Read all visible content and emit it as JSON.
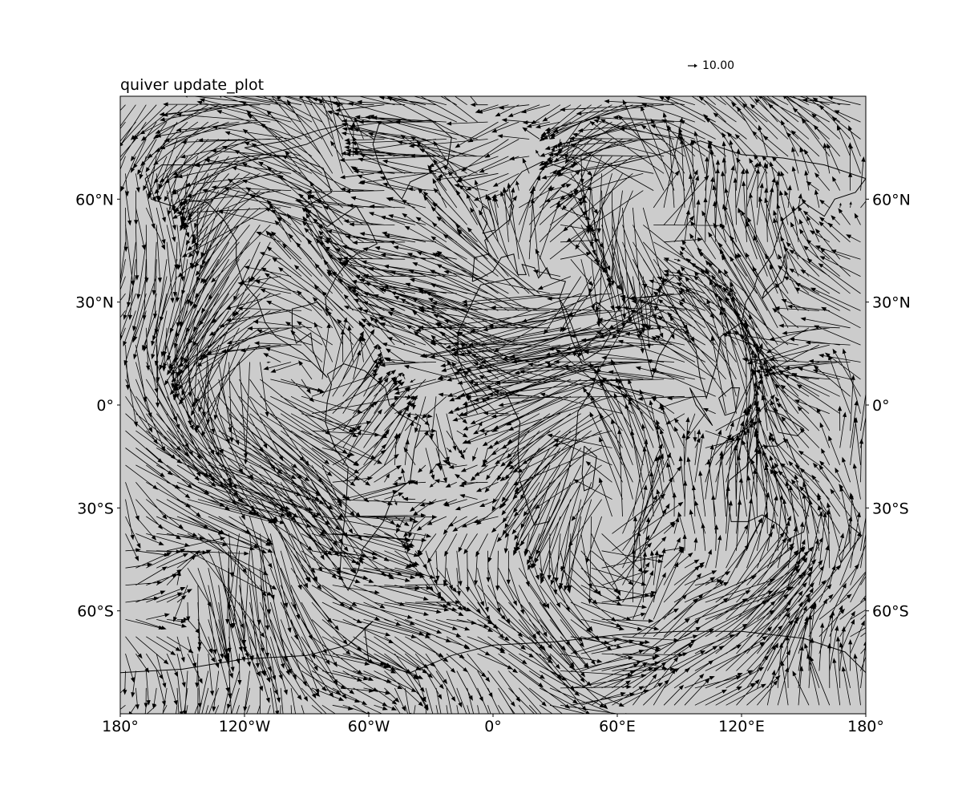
{
  "chart_data": {
    "type": "quiver",
    "title": "quiver update_plot",
    "projection": "PlateCarree",
    "xlim": [
      -180,
      180
    ],
    "ylim": [
      -90,
      90
    ],
    "x_ticks": [
      -180,
      -120,
      -60,
      0,
      60,
      120,
      180
    ],
    "x_tick_labels": [
      "180°",
      "120°W",
      "60°W",
      "0°",
      "60°E",
      "120°E",
      "180°"
    ],
    "y_ticks": [
      60,
      30,
      0,
      -30,
      -60
    ],
    "y_tick_labels": [
      "60°N",
      "30°N",
      "0°",
      "30°S",
      "60°S"
    ],
    "y_tick_labels_both_sides": true,
    "quiver_key": {
      "value": 10.0,
      "label": "10.00",
      "placement": "above plot, right of center"
    },
    "background_color": "#cccccc",
    "coastlines": true,
    "arrow_color": "#000000",
    "vectors": {
      "grid_spacing_deg": 5,
      "lon_range": [
        -177.5,
        177.5
      ],
      "lat_range": [
        -87.5,
        87.5
      ],
      "vector_field": "dense global wind vectors with strong zonal flow in the tropics and turbulent flow at mid-latitudes"
    }
  }
}
